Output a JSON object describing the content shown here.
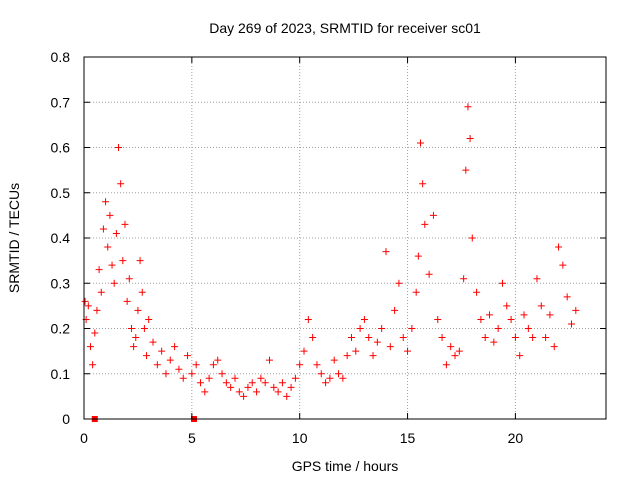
{
  "chart_data": {
    "type": "scatter",
    "title": "Day 269 of 2023, SRMTID for receiver sc01",
    "xlabel": "GPS time / hours",
    "ylabel": "SRMTID / TECUs",
    "xlim": [
      0,
      24.2
    ],
    "ylim": [
      0,
      0.8
    ],
    "xticks": [
      0,
      5,
      10,
      15,
      20
    ],
    "xtick_labels": [
      "0",
      "5",
      "10",
      "15",
      "20"
    ],
    "yticks": [
      0,
      0.1,
      0.2,
      0.3,
      0.4,
      0.5,
      0.6,
      0.7,
      0.8
    ],
    "ytick_labels": [
      "0",
      "0.1",
      "0.2",
      "0.3",
      "0.4",
      "0.5",
      "0.6",
      "0.7",
      "0.8"
    ],
    "grid": true,
    "marker": "+",
    "color": "#ff0000",
    "data_gaps_marked_at_zero": [
      0.5,
      5.1
    ],
    "series": [
      {
        "name": "SRMTID",
        "x": [
          0.05,
          0.1,
          0.2,
          0.3,
          0.4,
          0.5,
          0.6,
          0.7,
          0.8,
          0.9,
          1.0,
          1.1,
          1.2,
          1.3,
          1.4,
          1.5,
          1.6,
          1.7,
          1.8,
          1.9,
          2.0,
          2.1,
          2.2,
          2.3,
          2.4,
          2.5,
          2.6,
          2.7,
          2.8,
          2.9,
          3.0,
          3.2,
          3.4,
          3.6,
          3.8,
          4.0,
          4.2,
          4.4,
          4.6,
          4.8,
          5.0,
          5.2,
          5.4,
          5.6,
          5.8,
          6.0,
          6.2,
          6.4,
          6.6,
          6.8,
          7.0,
          7.2,
          7.4,
          7.6,
          7.8,
          8.0,
          8.2,
          8.4,
          8.6,
          8.8,
          9.0,
          9.2,
          9.4,
          9.6,
          9.8,
          10.0,
          10.2,
          10.4,
          10.6,
          10.8,
          11.0,
          11.2,
          11.4,
          11.6,
          11.8,
          12.0,
          12.2,
          12.4,
          12.6,
          12.8,
          13.0,
          13.2,
          13.4,
          13.6,
          13.8,
          14.0,
          14.2,
          14.4,
          14.6,
          14.8,
          15.0,
          15.2,
          15.4,
          15.5,
          15.6,
          15.7,
          15.8,
          16.0,
          16.2,
          16.4,
          16.6,
          16.8,
          17.0,
          17.2,
          17.4,
          17.6,
          17.7,
          17.8,
          17.9,
          18.0,
          18.2,
          18.4,
          18.6,
          18.8,
          19.0,
          19.2,
          19.4,
          19.6,
          19.8,
          20.0,
          20.2,
          20.4,
          20.6,
          20.8,
          21.0,
          21.2,
          21.4,
          21.6,
          21.8,
          22.0,
          22.2,
          22.4,
          22.6,
          22.8
        ],
        "y": [
          0.26,
          0.22,
          0.25,
          0.16,
          0.12,
          0.19,
          0.24,
          0.33,
          0.28,
          0.42,
          0.48,
          0.38,
          0.45,
          0.34,
          0.3,
          0.41,
          0.6,
          0.52,
          0.35,
          0.43,
          0.26,
          0.31,
          0.2,
          0.16,
          0.18,
          0.24,
          0.35,
          0.28,
          0.2,
          0.14,
          0.22,
          0.17,
          0.12,
          0.15,
          0.1,
          0.13,
          0.16,
          0.11,
          0.09,
          0.14,
          0.1,
          0.12,
          0.08,
          0.06,
          0.09,
          0.12,
          0.13,
          0.1,
          0.08,
          0.07,
          0.09,
          0.06,
          0.05,
          0.07,
          0.08,
          0.06,
          0.09,
          0.08,
          0.13,
          0.07,
          0.06,
          0.08,
          0.05,
          0.07,
          0.09,
          0.12,
          0.15,
          0.22,
          0.18,
          0.12,
          0.1,
          0.08,
          0.09,
          0.13,
          0.1,
          0.09,
          0.14,
          0.18,
          0.15,
          0.2,
          0.22,
          0.18,
          0.14,
          0.17,
          0.2,
          0.37,
          0.16,
          0.24,
          0.3,
          0.18,
          0.15,
          0.2,
          0.28,
          0.36,
          0.61,
          0.52,
          0.43,
          0.32,
          0.45,
          0.22,
          0.18,
          0.12,
          0.16,
          0.14,
          0.15,
          0.31,
          0.55,
          0.69,
          0.62,
          0.4,
          0.28,
          0.22,
          0.18,
          0.23,
          0.17,
          0.2,
          0.3,
          0.25,
          0.22,
          0.18,
          0.14,
          0.23,
          0.2,
          0.18,
          0.31,
          0.25,
          0.18,
          0.23,
          0.16,
          0.38,
          0.34,
          0.27,
          0.21,
          0.24
        ]
      }
    ]
  }
}
